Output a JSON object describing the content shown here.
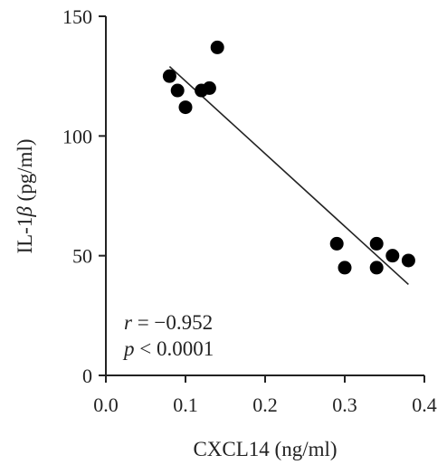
{
  "chart_data": {
    "type": "scatter",
    "xlabel": "CXCL14 (ng/ml)",
    "ylabel": "IL-1β (pg/ml)",
    "ylabel_prefix": "IL-1",
    "ylabel_greek": "β",
    "ylabel_suffix": " (pg/ml)",
    "xlim": [
      0.0,
      0.4
    ],
    "ylim": [
      0,
      150
    ],
    "xticks": [
      "0.0",
      "0.1",
      "0.2",
      "0.3",
      "0.4"
    ],
    "yticks": [
      "0",
      "50",
      "100",
      "150"
    ],
    "grid": false,
    "points": [
      {
        "x": 0.08,
        "y": 125
      },
      {
        "x": 0.09,
        "y": 119
      },
      {
        "x": 0.1,
        "y": 112
      },
      {
        "x": 0.12,
        "y": 119
      },
      {
        "x": 0.13,
        "y": 120
      },
      {
        "x": 0.14,
        "y": 137
      },
      {
        "x": 0.29,
        "y": 55
      },
      {
        "x": 0.3,
        "y": 45
      },
      {
        "x": 0.34,
        "y": 55
      },
      {
        "x": 0.34,
        "y": 45
      },
      {
        "x": 0.36,
        "y": 50
      },
      {
        "x": 0.38,
        "y": 48
      }
    ],
    "fit_line": {
      "x": [
        0.08,
        0.38
      ],
      "y": [
        129,
        38
      ]
    },
    "annotations": {
      "r_symbol": "r",
      "r_value": " = −0.952",
      "p_symbol": "p",
      "p_value": " < 0.0001"
    }
  }
}
